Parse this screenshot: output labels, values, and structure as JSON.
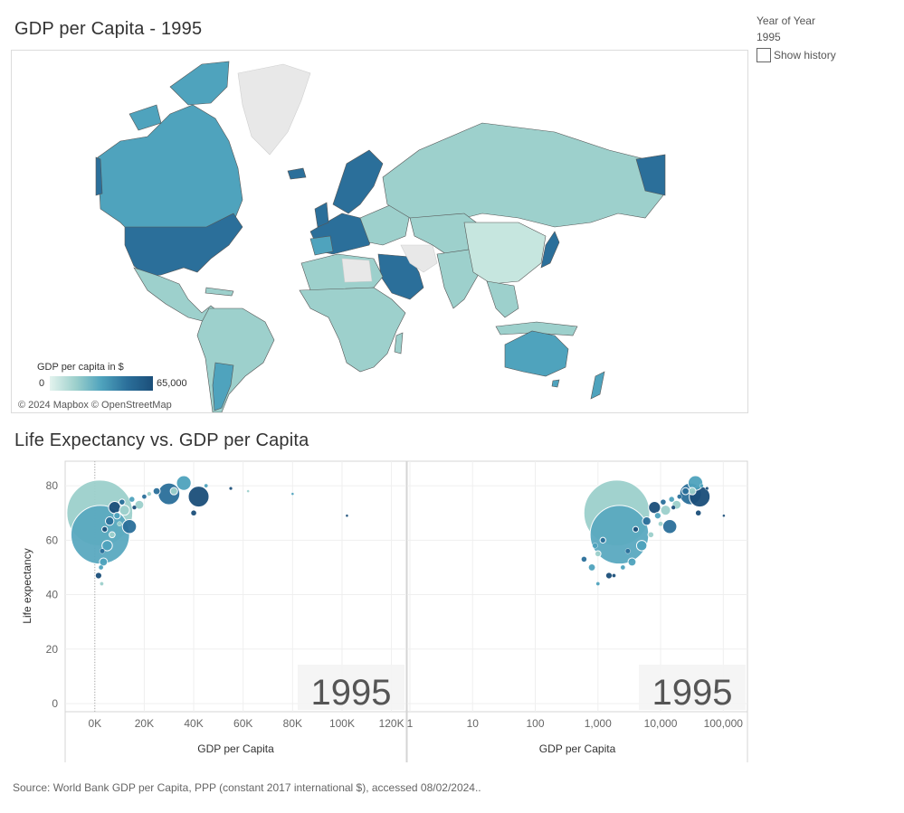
{
  "map": {
    "title": "GDP per Capita - 1995",
    "legend_title": "GDP per capita in $",
    "legend_min": "0",
    "legend_max": "65,000",
    "attribution": "© 2024 Mapbox © OpenStreetMap",
    "colors": {
      "low": "#e3f3ee",
      "mid": "#4fa3bd",
      "high": "#1b4f7a",
      "no_data": "#e8e8e8",
      "border": "#555555"
    }
  },
  "filter": {
    "label": "Year of Year",
    "value": "1995",
    "history_label": "Show history",
    "history_checked": false
  },
  "scatter": {
    "title": "Life Expectancy vs. GDP per Capita",
    "year_watermark": "1995"
  },
  "footer": "Source: World Bank GDP per Capita, PPP (constant 2017 international $), accessed 08/02/2024..",
  "chart_data": [
    {
      "type": "scatter",
      "xlabel": "GDP per Capita",
      "ylabel": "Life expectancy",
      "x_scale": "linear",
      "xlim": [
        -12000,
        126000
      ],
      "ylim": [
        -3,
        89
      ],
      "x_ticks": [
        "0K",
        "20K",
        "40K",
        "60K",
        "80K",
        "100K",
        "120K"
      ],
      "y_ticks": [
        "0",
        "20",
        "40",
        "60",
        "80"
      ],
      "grid": true,
      "points": [
        {
          "x": 2000,
          "y": 70,
          "size": 1200,
          "color": "#9dd0cc"
        },
        {
          "x": 2200,
          "y": 62,
          "size": 950,
          "color": "#5aa9c0"
        },
        {
          "x": 30000,
          "y": 77,
          "size": 130,
          "color": "#2b6f9a"
        },
        {
          "x": 42000,
          "y": 76,
          "size": 120,
          "color": "#1b4f7a"
        },
        {
          "x": 36000,
          "y": 81,
          "size": 60,
          "color": "#4fa3bd"
        },
        {
          "x": 14000,
          "y": 65,
          "size": 55,
          "color": "#2b6f9a"
        },
        {
          "x": 8000,
          "y": 72,
          "size": 40,
          "color": "#1b4f7a"
        },
        {
          "x": 5000,
          "y": 58,
          "size": 30,
          "color": "#4fa3bd"
        },
        {
          "x": 12000,
          "y": 71,
          "size": 28,
          "color": "#9dd0cc"
        },
        {
          "x": 18000,
          "y": 73,
          "size": 22,
          "color": "#9dd0cc"
        },
        {
          "x": 6000,
          "y": 67,
          "size": 20,
          "color": "#2b6f9a"
        },
        {
          "x": 3500,
          "y": 52,
          "size": 18,
          "color": "#4fa3bd"
        },
        {
          "x": 1500,
          "y": 47,
          "size": 12,
          "color": "#1b4f7a"
        },
        {
          "x": 25000,
          "y": 78,
          "size": 14,
          "color": "#2b6f9a"
        },
        {
          "x": 32000,
          "y": 78,
          "size": 15,
          "color": "#9dd0cc"
        },
        {
          "x": 40000,
          "y": 70,
          "size": 10,
          "color": "#1b4f7a"
        },
        {
          "x": 9000,
          "y": 69,
          "size": 12,
          "color": "#4fa3bd"
        },
        {
          "x": 11000,
          "y": 74,
          "size": 10,
          "color": "#2b6f9a"
        },
        {
          "x": 7000,
          "y": 62,
          "size": 10,
          "color": "#9dd0cc"
        },
        {
          "x": 4000,
          "y": 64,
          "size": 9,
          "color": "#1b4f7a"
        },
        {
          "x": 15000,
          "y": 75,
          "size": 8,
          "color": "#4fa3bd"
        },
        {
          "x": 20000,
          "y": 76,
          "size": 6,
          "color": "#2b6f9a"
        },
        {
          "x": 22000,
          "y": 77,
          "size": 5,
          "color": "#9dd0cc"
        },
        {
          "x": 3000,
          "y": 56,
          "size": 7,
          "color": "#2b6f9a"
        },
        {
          "x": 2500,
          "y": 50,
          "size": 6,
          "color": "#4fa3bd"
        },
        {
          "x": 2800,
          "y": 44,
          "size": 4,
          "color": "#9dd0cc"
        },
        {
          "x": 16000,
          "y": 72,
          "size": 5,
          "color": "#1b4f7a"
        },
        {
          "x": 10000,
          "y": 66,
          "size": 6,
          "color": "#9dd0cc"
        },
        {
          "x": 45000,
          "y": 80,
          "size": 4,
          "color": "#4fa3bd"
        },
        {
          "x": 55000,
          "y": 79,
          "size": 3,
          "color": "#1b4f7a"
        },
        {
          "x": 62000,
          "y": 78,
          "size": 2,
          "color": "#9dd0cc"
        },
        {
          "x": 80000,
          "y": 77,
          "size": 2,
          "color": "#4fa3bd"
        },
        {
          "x": 102000,
          "y": 69,
          "size": 2,
          "color": "#1b4f7a"
        }
      ]
    },
    {
      "type": "scatter",
      "xlabel": "GDP per Capita",
      "ylabel": "",
      "x_scale": "log",
      "xlim": [
        1,
        220000
      ],
      "ylim": [
        -3,
        89
      ],
      "x_ticks": [
        "1",
        "10",
        "100",
        "1,000",
        "10,000",
        "100,000"
      ],
      "x_tick_values": [
        1,
        10,
        100,
        1000,
        10000,
        100000
      ],
      "grid": true,
      "points": [
        {
          "x": 2000,
          "y": 70,
          "size": 1200,
          "color": "#9dd0cc"
        },
        {
          "x": 2200,
          "y": 62,
          "size": 950,
          "color": "#5aa9c0"
        },
        {
          "x": 30000,
          "y": 77,
          "size": 130,
          "color": "#2b6f9a"
        },
        {
          "x": 42000,
          "y": 76,
          "size": 120,
          "color": "#1b4f7a"
        },
        {
          "x": 36000,
          "y": 81,
          "size": 60,
          "color": "#4fa3bd"
        },
        {
          "x": 14000,
          "y": 65,
          "size": 55,
          "color": "#2b6f9a"
        },
        {
          "x": 8000,
          "y": 72,
          "size": 40,
          "color": "#1b4f7a"
        },
        {
          "x": 5000,
          "y": 58,
          "size": 30,
          "color": "#4fa3bd"
        },
        {
          "x": 12000,
          "y": 71,
          "size": 28,
          "color": "#9dd0cc"
        },
        {
          "x": 18000,
          "y": 73,
          "size": 22,
          "color": "#9dd0cc"
        },
        {
          "x": 6000,
          "y": 67,
          "size": 20,
          "color": "#2b6f9a"
        },
        {
          "x": 3500,
          "y": 52,
          "size": 18,
          "color": "#4fa3bd"
        },
        {
          "x": 1500,
          "y": 47,
          "size": 12,
          "color": "#1b4f7a"
        },
        {
          "x": 800,
          "y": 50,
          "size": 14,
          "color": "#4fa3bd"
        },
        {
          "x": 600,
          "y": 53,
          "size": 8,
          "color": "#2b6f9a"
        },
        {
          "x": 1000,
          "y": 55,
          "size": 10,
          "color": "#9dd0cc"
        },
        {
          "x": 1200,
          "y": 60,
          "size": 9,
          "color": "#2b6f9a"
        },
        {
          "x": 900,
          "y": 58,
          "size": 8,
          "color": "#4fa3bd"
        },
        {
          "x": 1000,
          "y": 44,
          "size": 4,
          "color": "#4fa3bd"
        },
        {
          "x": 1800,
          "y": 47,
          "size": 4,
          "color": "#1b4f7a"
        },
        {
          "x": 25000,
          "y": 78,
          "size": 14,
          "color": "#2b6f9a"
        },
        {
          "x": 32000,
          "y": 78,
          "size": 15,
          "color": "#9dd0cc"
        },
        {
          "x": 40000,
          "y": 70,
          "size": 10,
          "color": "#1b4f7a"
        },
        {
          "x": 9000,
          "y": 69,
          "size": 12,
          "color": "#4fa3bd"
        },
        {
          "x": 11000,
          "y": 74,
          "size": 10,
          "color": "#2b6f9a"
        },
        {
          "x": 7000,
          "y": 62,
          "size": 10,
          "color": "#9dd0cc"
        },
        {
          "x": 4000,
          "y": 64,
          "size": 9,
          "color": "#1b4f7a"
        },
        {
          "x": 15000,
          "y": 75,
          "size": 8,
          "color": "#4fa3bd"
        },
        {
          "x": 20000,
          "y": 76,
          "size": 6,
          "color": "#2b6f9a"
        },
        {
          "x": 3000,
          "y": 56,
          "size": 7,
          "color": "#2b6f9a"
        },
        {
          "x": 2500,
          "y": 50,
          "size": 6,
          "color": "#4fa3bd"
        },
        {
          "x": 16000,
          "y": 72,
          "size": 5,
          "color": "#1b4f7a"
        },
        {
          "x": 10000,
          "y": 66,
          "size": 6,
          "color": "#9dd0cc"
        },
        {
          "x": 45000,
          "y": 80,
          "size": 4,
          "color": "#4fa3bd"
        },
        {
          "x": 55000,
          "y": 79,
          "size": 3,
          "color": "#1b4f7a"
        },
        {
          "x": 102000,
          "y": 69,
          "size": 2,
          "color": "#1b4f7a"
        }
      ]
    }
  ]
}
